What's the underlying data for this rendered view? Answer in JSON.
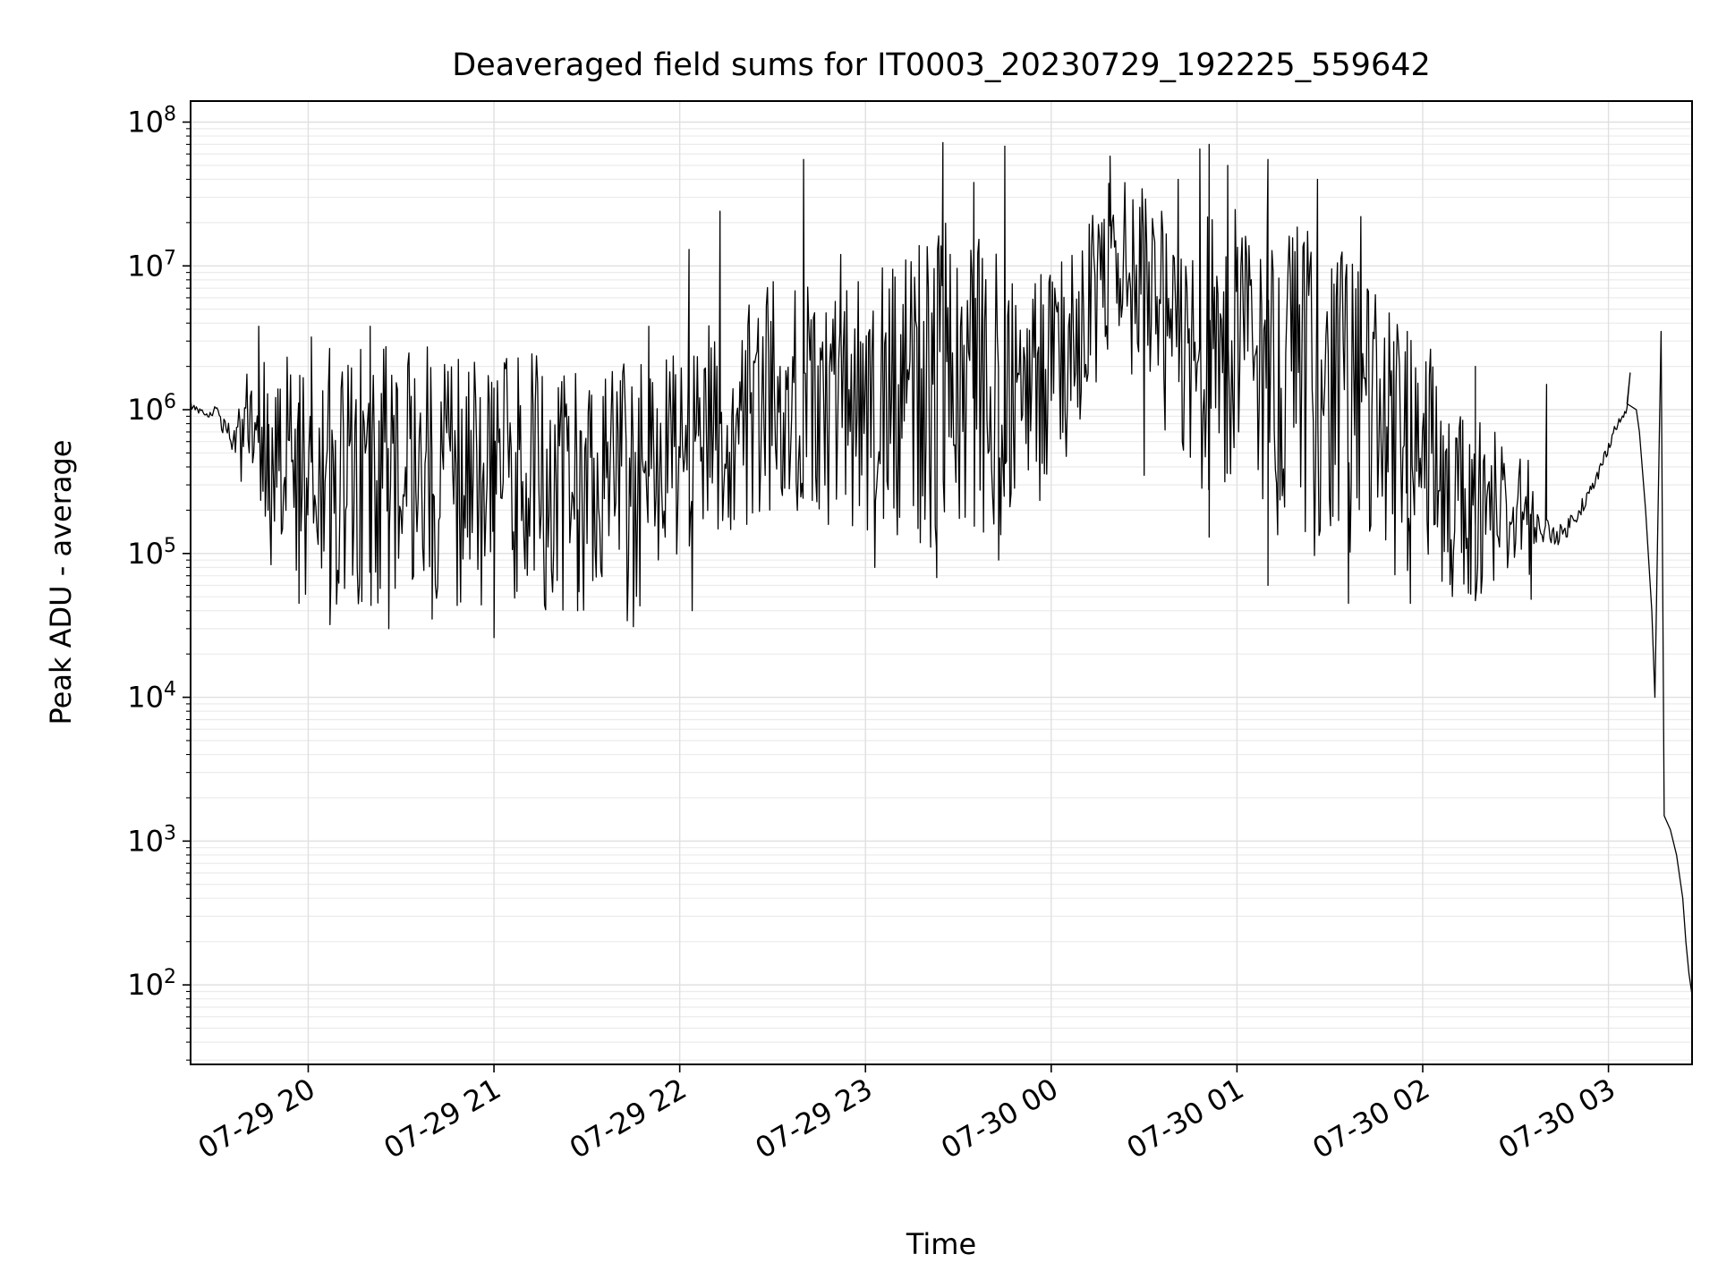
{
  "chart_data": {
    "type": "line",
    "title": "Deaveraged field sums for IT0003_20230729_192225_559642",
    "xlabel": "Time",
    "ylabel": "Peak ADU - average",
    "yscale": "log",
    "ylim": [
      28,
      140000000
    ],
    "xlim": [
      "07-29 19:22",
      "07-30 03:27"
    ],
    "grid": "major and minor",
    "line_color": "#000000",
    "x_ticks": [
      {
        "value": "07-29 20:00",
        "label": "07-29 20"
      },
      {
        "value": "07-29 21:00",
        "label": "07-29 21"
      },
      {
        "value": "07-29 22:00",
        "label": "07-29 22"
      },
      {
        "value": "07-29 23:00",
        "label": "07-29 23"
      },
      {
        "value": "07-30 00:00",
        "label": "07-30 00"
      },
      {
        "value": "07-30 01:00",
        "label": "07-30 01"
      },
      {
        "value": "07-30 02:00",
        "label": "07-30 02"
      },
      {
        "value": "07-30 03:00",
        "label": "07-30 03"
      }
    ],
    "y_ticks": [
      {
        "value": 100,
        "base": "10",
        "exp": "2"
      },
      {
        "value": 1000,
        "base": "10",
        "exp": "3"
      },
      {
        "value": 10000,
        "base": "10",
        "exp": "4"
      },
      {
        "value": 100000,
        "base": "10",
        "exp": "5"
      },
      {
        "value": 1000000,
        "base": "10",
        "exp": "6"
      },
      {
        "value": 10000000,
        "base": "10",
        "exp": "7"
      },
      {
        "value": 100000000,
        "base": "10",
        "exp": "8"
      }
    ],
    "series": [
      {
        "envelope": [
          {
            "x": "07-29 19:22",
            "low": 800000,
            "high": 1400000
          },
          {
            "x": "07-29 19:30",
            "low": 700000,
            "high": 1300000
          },
          {
            "x": "07-29 19:37",
            "low": 300000,
            "high": 1200000
          },
          {
            "x": "07-29 19:45",
            "low": 120000,
            "high": 1500000
          },
          {
            "x": "07-29 20:00",
            "low": 60000,
            "high": 2000000
          },
          {
            "x": "07-29 20:30",
            "low": 60000,
            "high": 2000000
          },
          {
            "x": "07-29 21:00",
            "low": 60000,
            "high": 1900000
          },
          {
            "x": "07-29 21:30",
            "low": 55000,
            "high": 1600000
          },
          {
            "x": "07-29 21:45",
            "low": 45000,
            "high": 1600000
          },
          {
            "x": "07-29 22:00",
            "low": 150000,
            "high": 2000000
          },
          {
            "x": "07-29 22:30",
            "low": 250000,
            "high": 6000000
          },
          {
            "x": "07-29 23:00",
            "low": 200000,
            "high": 6000000
          },
          {
            "x": "07-29 23:20",
            "low": 150000,
            "high": 15000000
          },
          {
            "x": "07-29 23:40",
            "low": 150000,
            "high": 12000000
          },
          {
            "x": "07-29 23:55",
            "low": 300000,
            "high": 6000000
          },
          {
            "x": "07-30 00:10",
            "low": 800000,
            "high": 15000000
          },
          {
            "x": "07-30 00:20",
            "low": 3000000,
            "high": 30000000
          },
          {
            "x": "07-30 00:30",
            "low": 2000000,
            "high": 25000000
          },
          {
            "x": "07-30 00:40",
            "low": 400000,
            "high": 15000000
          },
          {
            "x": "07-30 01:00",
            "low": 300000,
            "high": 20000000
          },
          {
            "x": "07-30 01:20",
            "low": 150000,
            "high": 15000000
          },
          {
            "x": "07-30 01:40",
            "low": 100000,
            "high": 8000000
          },
          {
            "x": "07-30 02:00",
            "low": 80000,
            "high": 2500000
          },
          {
            "x": "07-30 02:10",
            "low": 70000,
            "high": 800000
          },
          {
            "x": "07-30 02:30",
            "low": 70000,
            "high": 400000
          },
          {
            "x": "07-30 02:45",
            "low": 90000,
            "high": 200000
          },
          {
            "x": "07-30 02:55",
            "low": 200000,
            "high": 400000
          },
          {
            "x": "07-30 03:02",
            "low": 600000,
            "high": 900000
          },
          {
            "x": "07-30 03:06",
            "low": 900000,
            "high": 1100000
          }
        ],
        "spikes": [
          {
            "x": "07-29 19:44",
            "value": 3800000
          },
          {
            "x": "07-29 20:01",
            "value": 3200000
          },
          {
            "x": "07-29 20:20",
            "value": 3800000
          },
          {
            "x": "07-29 21:50",
            "value": 3800000
          },
          {
            "x": "07-29 22:03",
            "value": 13000000
          },
          {
            "x": "07-29 22:13",
            "value": 24000000
          },
          {
            "x": "07-29 22:40",
            "value": 55000000
          },
          {
            "x": "07-29 22:52",
            "value": 12000000
          },
          {
            "x": "07-29 23:13",
            "value": 11000000
          },
          {
            "x": "07-29 23:25",
            "value": 72000000
          },
          {
            "x": "07-29 23:35",
            "value": 38000000
          },
          {
            "x": "07-29 23:45",
            "value": 68000000
          },
          {
            "x": "07-30 00:19",
            "value": 58000000
          },
          {
            "x": "07-30 00:41",
            "value": 40000000
          },
          {
            "x": "07-30 00:48",
            "value": 65000000
          },
          {
            "x": "07-30 00:51",
            "value": 70000000
          },
          {
            "x": "07-30 00:57",
            "value": 50000000
          },
          {
            "x": "07-30 01:10",
            "value": 55000000
          },
          {
            "x": "07-30 01:26",
            "value": 40000000
          },
          {
            "x": "07-30 01:40",
            "value": 22000000
          },
          {
            "x": "07-30 01:55",
            "value": 3500000
          },
          {
            "x": "07-30 02:17",
            "value": 2000000
          },
          {
            "x": "07-30 02:40",
            "value": 1500000
          },
          {
            "x": "07-30 03:07",
            "value": 1800000
          }
        ],
        "dips": [
          {
            "x": "07-29 19:47",
            "value": 200000
          },
          {
            "x": "07-29 19:57",
            "value": 45000
          },
          {
            "x": "07-29 20:07",
            "value": 32000
          },
          {
            "x": "07-29 20:26",
            "value": 30000
          },
          {
            "x": "07-29 20:40",
            "value": 35000
          },
          {
            "x": "07-29 21:00",
            "value": 26000
          },
          {
            "x": "07-29 21:27",
            "value": 40000
          },
          {
            "x": "07-29 21:45",
            "value": 31000
          },
          {
            "x": "07-29 22:04",
            "value": 40000
          },
          {
            "x": "07-29 23:03",
            "value": 80000
          },
          {
            "x": "07-29 23:23",
            "value": 68000
          },
          {
            "x": "07-29 23:43",
            "value": 90000
          },
          {
            "x": "07-30 00:30",
            "value": 350000
          },
          {
            "x": "07-30 00:51",
            "value": 130000
          },
          {
            "x": "07-30 01:10",
            "value": 60000
          },
          {
            "x": "07-30 01:36",
            "value": 45000
          },
          {
            "x": "07-30 01:56",
            "value": 45000
          },
          {
            "x": "07-30 02:17",
            "value": 47000
          },
          {
            "x": "07-30 02:35",
            "value": 48000
          }
        ],
        "tail": [
          {
            "x": "07-30 03:06",
            "value": 1100000
          },
          {
            "x": "07-30 03:09",
            "value": 1000000
          },
          {
            "x": "07-30 03:10",
            "value": 700000
          },
          {
            "x": "07-30 03:12",
            "value": 200000
          },
          {
            "x": "07-30 03:14",
            "value": 40000
          },
          {
            "x": "07-30 03:15",
            "value": 10000
          },
          {
            "x": "07-30 03:17",
            "value": 3500000
          },
          {
            "x": "07-30 03:18",
            "value": 1500
          },
          {
            "x": "07-30 03:20",
            "value": 1200
          },
          {
            "x": "07-30 03:22",
            "value": 800
          },
          {
            "x": "07-30 03:24",
            "value": 400
          },
          {
            "x": "07-30 03:25",
            "value": 200
          },
          {
            "x": "07-30 03:26",
            "value": 120
          },
          {
            "x": "07-30 03:27",
            "value": 85
          }
        ]
      }
    ]
  }
}
